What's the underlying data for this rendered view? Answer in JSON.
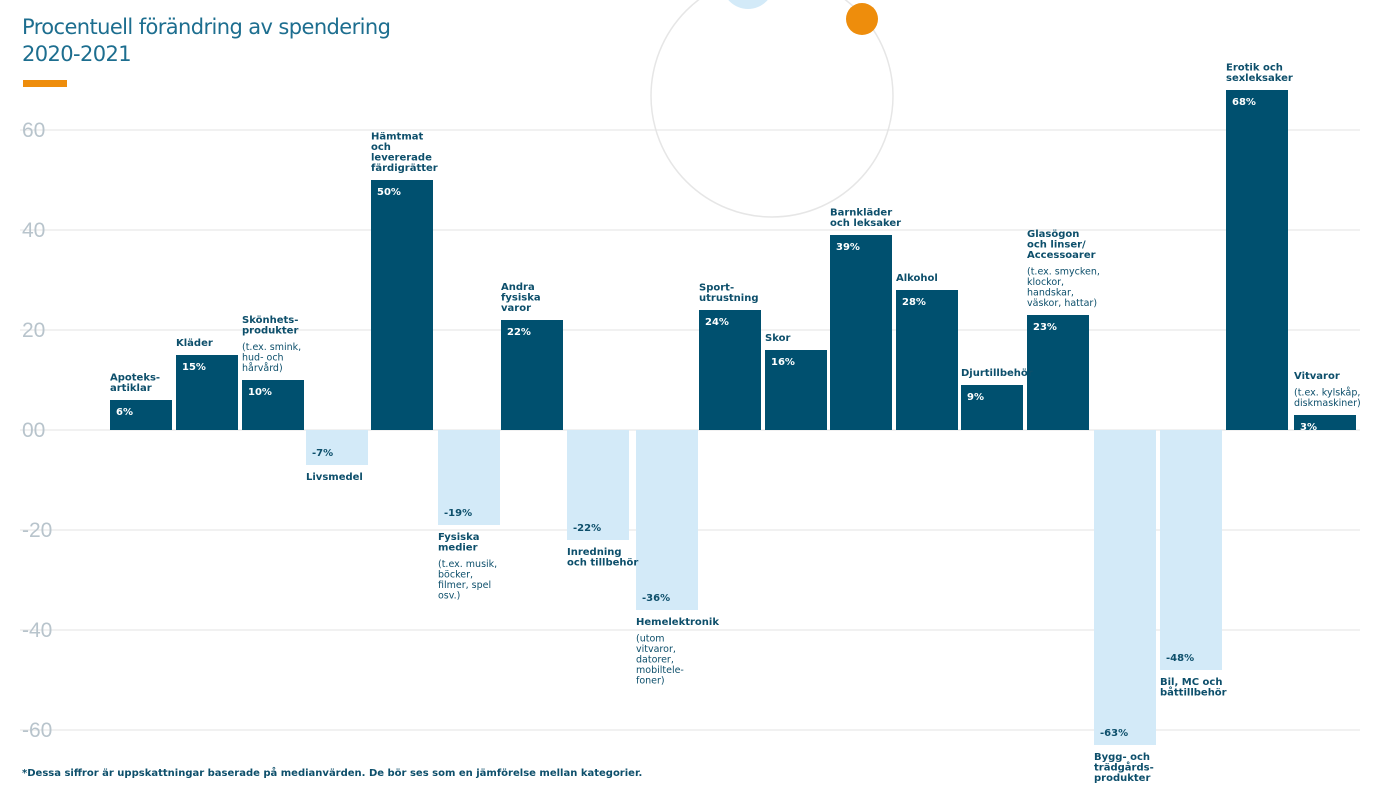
{
  "header": {
    "title_line1": "Procentuell förändring av spendering",
    "title_line2": "2020-2021"
  },
  "footnote": "*Dessa siffror är uppskattningar baserade på medianvärden. De bör ses som en jämförelse mellan kategorier.",
  "colors": {
    "positive": "#00506f",
    "negative": "#d3eaf8",
    "accent": "#ee8d0c",
    "grid": "#e3e3e3",
    "text": "#0d4f6b"
  },
  "chart_data": {
    "type": "bar",
    "title": "Procentuell förändring av spendering 2020-2021",
    "xlabel": "",
    "ylabel": "",
    "ylim": [
      -60,
      60
    ],
    "grid": true,
    "y_ticks": [
      "60",
      "40",
      "20",
      "00",
      "-20",
      "-40",
      "-60"
    ],
    "categories": [
      "Apoteksartiklar",
      "Kläder",
      "Skönhetsprodukter",
      "Livsmedel",
      "Hämtmat och levererade färdigrätter",
      "Fysiska medier",
      "Andra fysiska varor",
      "Inredning och tillbehör",
      "Hemelektronik",
      "Sportutrustning",
      "Skor",
      "Barnkläder och leksaker",
      "Alkohol",
      "Djurtillbehör",
      "Glasögon och linser/Accessoarer",
      "Bygg- och trädgårdsprodukter",
      "Bil, MC och båttillbehör",
      "Erotik och sexleksaker",
      "Vitvaror"
    ],
    "values": [
      6,
      15,
      10,
      -7,
      50,
      -19,
      22,
      -22,
      -36,
      24,
      16,
      39,
      28,
      9,
      23,
      -63,
      -48,
      68,
      3
    ],
    "value_labels": [
      "6%",
      "15%",
      "10%",
      "-7%",
      "50%",
      "-19%",
      "22%",
      "-22%",
      "-36%",
      "24%",
      "16%",
      "39%",
      "28%",
      "9%",
      "23%",
      "-63%",
      "-48%",
      "68%",
      "3%"
    ],
    "label_lines": [
      [
        "Apoteks-",
        "artiklar"
      ],
      [
        "Kläder"
      ],
      [
        "Skönhets-",
        "produkter"
      ],
      [
        "Livsmedel"
      ],
      [
        "Hämtmat",
        "och",
        "levererade",
        "färdigrätter"
      ],
      [
        "Fysiska",
        "medier"
      ],
      [
        "Andra",
        "fysiska",
        "varor"
      ],
      [
        "Inredning",
        "och tillbehör"
      ],
      [
        "Hemelektronik"
      ],
      [
        "Sport-",
        "utrustning"
      ],
      [
        "Skor"
      ],
      [
        "Barnkläder",
        "och leksaker"
      ],
      [
        "Alkohol"
      ],
      [
        "Djurtillbehör"
      ],
      [
        "Glasögon",
        "och linser/",
        "Accessoarer"
      ],
      [
        "Bygg- och",
        "trädgårds-",
        "produkter"
      ],
      [
        "Bil, MC och",
        "båttillbehör"
      ],
      [
        "Erotik och",
        "sexleksaker"
      ],
      [
        "Vitvaror"
      ]
    ],
    "note_lines": [
      [],
      [],
      [
        "(t.ex. smink,",
        "hud- och",
        "hårvård)"
      ],
      [],
      [],
      [
        "(t.ex. musik,",
        "böcker,",
        "filmer, spel",
        "osv.)"
      ],
      [],
      [],
      [
        "(utom",
        "vitvaror,",
        "datorer,",
        "mobiltele-",
        "foner)"
      ],
      [],
      [],
      [],
      [],
      [],
      [
        "(t.ex. smycken,",
        "klockor,",
        "handskar,",
        "väskor, hattar)"
      ],
      [],
      [],
      [],
      [
        "(t.ex. kylskåp,",
        "diskmaskiner)"
      ]
    ]
  }
}
